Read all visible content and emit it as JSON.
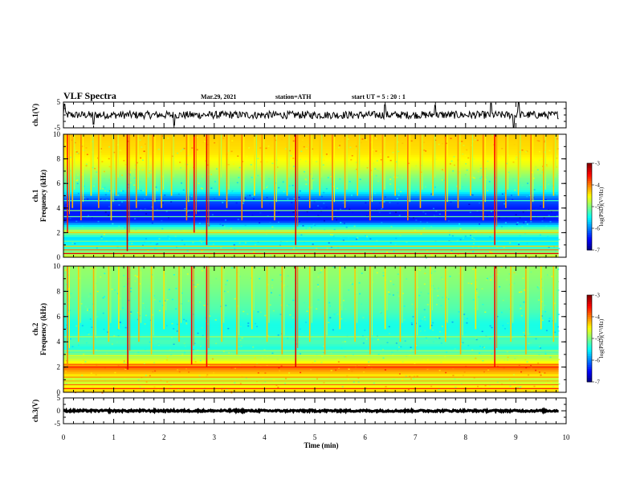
{
  "header": {
    "title": "VLF Spectra",
    "date": "Mar.29, 2021",
    "station": "station=ATH",
    "start_ut": "start  UT =  5 : 20 : 1"
  },
  "chart_data": [
    {
      "id": "ch1-waveform",
      "type": "line",
      "ylabel": "ch.1(V)",
      "ylim": [
        -5,
        5
      ],
      "yticks": [
        5,
        -5
      ],
      "xlim": [
        0,
        10
      ],
      "data_span_min": 9.85,
      "baseline_v": 0,
      "noise_amplitude_v": 1.5,
      "spikes": [
        {
          "t": 0.02,
          "v": 4.2
        },
        {
          "t": 0.6,
          "v": -3.6
        },
        {
          "t": 2.2,
          "v": -4.0
        },
        {
          "t": 6.4,
          "v": 4.0
        },
        {
          "t": 7.4,
          "v": 3.8
        },
        {
          "t": 8.5,
          "v": 4.6
        },
        {
          "t": 8.95,
          "v": -4.8
        },
        {
          "t": 9.05,
          "v": 4.8
        }
      ]
    },
    {
      "id": "ch1-spectrogram",
      "type": "heatmap",
      "ylabel_top": "ch.1",
      "ylabel": "Frequency  (kHz)",
      "ylim": [
        0,
        10
      ],
      "yticks": [
        0,
        2,
        4,
        6,
        8,
        10
      ],
      "xlim": [
        0,
        10
      ],
      "data_span_min": 9.85,
      "colorbar": {
        "label": "log(PSD)(V²/Hz)",
        "range": [
          -7,
          -3
        ],
        "ticks": [
          -3,
          -4,
          -5,
          -6,
          -7
        ]
      },
      "profile": [
        {
          "f": 0,
          "v": -4.6
        },
        {
          "f": 0.5,
          "v": -5.0
        },
        {
          "f": 1.0,
          "v": -5.5
        },
        {
          "f": 1.6,
          "v": -5.6
        },
        {
          "f": 2.0,
          "v": -4.9
        },
        {
          "f": 2.4,
          "v": -5.2
        },
        {
          "f": 3.0,
          "v": -6.4
        },
        {
          "f": 4.0,
          "v": -6.4
        },
        {
          "f": 4.8,
          "v": -6.1
        },
        {
          "f": 5.5,
          "v": -5.3
        },
        {
          "f": 6.5,
          "v": -5.0
        },
        {
          "f": 7.5,
          "v": -4.6
        },
        {
          "f": 8.5,
          "v": -4.4
        },
        {
          "f": 10,
          "v": -4.3
        }
      ],
      "hlines": [
        {
          "f": 0.3,
          "v": -3.4
        },
        {
          "f": 0.6,
          "v": -3.9
        },
        {
          "f": 0.9,
          "v": -4.3
        },
        {
          "f": 1.3,
          "v": -5.0
        },
        {
          "f": 2.0,
          "v": -4.3
        },
        {
          "f": 2.15,
          "v": -4.6
        },
        {
          "f": 3.3,
          "v": -5.1
        },
        {
          "f": 3.8,
          "v": -5.0
        },
        {
          "f": 4.6,
          "v": -5.3
        }
      ],
      "sferics": [
        {
          "t": 0.08,
          "f_min": 2,
          "v": -3.6
        },
        {
          "t": 0.18,
          "f_min": 4,
          "v": -4.2
        },
        {
          "t": 0.35,
          "f_min": 3,
          "v": -4.0
        },
        {
          "t": 0.55,
          "f_min": 5,
          "v": -4.4
        },
        {
          "t": 0.7,
          "f_min": 4,
          "v": -4.1
        },
        {
          "t": 0.95,
          "f_min": 3,
          "v": -4.3
        },
        {
          "t": 1.05,
          "f_min": 5,
          "v": -4.2
        },
        {
          "t": 1.27,
          "f_min": 0.5,
          "v": -3.3
        },
        {
          "t": 1.45,
          "f_min": 4,
          "v": -4.1
        },
        {
          "t": 1.65,
          "f_min": 5,
          "v": -4.3
        },
        {
          "t": 1.78,
          "f_min": 3,
          "v": -4.0
        },
        {
          "t": 1.95,
          "f_min": 4,
          "v": -4.2
        },
        {
          "t": 2.15,
          "f_min": 5,
          "v": -4.3
        },
        {
          "t": 2.45,
          "f_min": 3,
          "v": -4.0
        },
        {
          "t": 2.6,
          "f_min": 2,
          "v": -3.5
        },
        {
          "t": 2.85,
          "f_min": 1,
          "v": -3.4
        },
        {
          "t": 3.1,
          "f_min": 5,
          "v": -4.3
        },
        {
          "t": 3.25,
          "f_min": 4,
          "v": -4.1
        },
        {
          "t": 3.55,
          "f_min": 3,
          "v": -4.0
        },
        {
          "t": 3.8,
          "f_min": 5,
          "v": -4.4
        },
        {
          "t": 3.95,
          "f_min": 4,
          "v": -4.1
        },
        {
          "t": 4.2,
          "f_min": 3,
          "v": -4.2
        },
        {
          "t": 4.45,
          "f_min": 5,
          "v": -4.3
        },
        {
          "t": 4.62,
          "f_min": 1,
          "v": -3.4
        },
        {
          "t": 4.9,
          "f_min": 4,
          "v": -4.1
        },
        {
          "t": 5.1,
          "f_min": 5,
          "v": -4.3
        },
        {
          "t": 5.35,
          "f_min": 3,
          "v": -4.0
        },
        {
          "t": 5.6,
          "f_min": 4,
          "v": -4.2
        },
        {
          "t": 5.85,
          "f_min": 5,
          "v": -4.3
        },
        {
          "t": 6.1,
          "f_min": 3,
          "v": -4.0
        },
        {
          "t": 6.35,
          "f_min": 4,
          "v": -4.1
        },
        {
          "t": 6.6,
          "f_min": 5,
          "v": -4.3
        },
        {
          "t": 6.85,
          "f_min": 3,
          "v": -4.0
        },
        {
          "t": 7.1,
          "f_min": 4,
          "v": -4.2
        },
        {
          "t": 7.35,
          "f_min": 5,
          "v": -4.3
        },
        {
          "t": 7.6,
          "f_min": 3,
          "v": -4.0
        },
        {
          "t": 7.85,
          "f_min": 4,
          "v": -4.1
        },
        {
          "t": 8.1,
          "f_min": 5,
          "v": -4.3
        },
        {
          "t": 8.35,
          "f_min": 3,
          "v": -4.0
        },
        {
          "t": 8.58,
          "f_min": 1,
          "v": -3.5
        },
        {
          "t": 8.8,
          "f_min": 4,
          "v": -4.1
        },
        {
          "t": 9.05,
          "f_min": 5,
          "v": -4.3
        },
        {
          "t": 9.3,
          "f_min": 3,
          "v": -4.0
        },
        {
          "t": 9.55,
          "f_min": 4,
          "v": -4.2
        },
        {
          "t": 9.75,
          "f_min": 5,
          "v": -4.3
        }
      ]
    },
    {
      "id": "ch2-spectrogram",
      "type": "heatmap",
      "ylabel_top": "ch.2",
      "ylabel": "Frequency  (kHz)",
      "ylim": [
        0,
        10
      ],
      "yticks": [
        0,
        2,
        4,
        6,
        8,
        10
      ],
      "xlim": [
        0,
        10
      ],
      "data_span_min": 9.85,
      "colorbar": {
        "label": "log(PSD)(V²/Hz)",
        "range": [
          -7,
          -3
        ],
        "ticks": [
          -3,
          -4,
          -5,
          -6,
          -7
        ]
      },
      "profile": [
        {
          "f": 0,
          "v": -4.3
        },
        {
          "f": 0.5,
          "v": -4.5
        },
        {
          "f": 1.0,
          "v": -4.8
        },
        {
          "f": 1.5,
          "v": -4.3
        },
        {
          "f": 2.0,
          "v": -3.9
        },
        {
          "f": 2.4,
          "v": -4.5
        },
        {
          "f": 3.0,
          "v": -5.0
        },
        {
          "f": 3.5,
          "v": -5.4
        },
        {
          "f": 4.0,
          "v": -5.2
        },
        {
          "f": 4.8,
          "v": -5.4
        },
        {
          "f": 5.5,
          "v": -5.4
        },
        {
          "f": 6.5,
          "v": -5.2
        },
        {
          "f": 7.5,
          "v": -5.1
        },
        {
          "f": 8.5,
          "v": -5.0
        },
        {
          "f": 10,
          "v": -4.9
        }
      ],
      "hlines": [
        {
          "f": 0.3,
          "v": -3.5
        },
        {
          "f": 0.6,
          "v": -3.9
        },
        {
          "f": 0.9,
          "v": -4.2
        },
        {
          "f": 1.2,
          "v": -4.0
        },
        {
          "f": 2.0,
          "v": -3.6
        },
        {
          "f": 2.2,
          "v": -3.9
        },
        {
          "f": 2.9,
          "v": -4.6
        },
        {
          "f": 3.3,
          "v": -4.8
        },
        {
          "f": 4.4,
          "v": -4.8
        }
      ],
      "sferics": [
        {
          "t": 0.08,
          "f_min": 2,
          "v": -4.0
        },
        {
          "t": 0.3,
          "f_min": 4,
          "v": -4.3
        },
        {
          "t": 0.6,
          "f_min": 3,
          "v": -4.2
        },
        {
          "t": 0.9,
          "f_min": 4,
          "v": -4.3
        },
        {
          "t": 1.1,
          "f_min": 5,
          "v": -4.4
        },
        {
          "t": 1.28,
          "f_min": 1.8,
          "v": -3.4
        },
        {
          "t": 1.5,
          "f_min": 4,
          "v": -4.2
        },
        {
          "t": 1.75,
          "f_min": 3,
          "v": -4.3
        },
        {
          "t": 2.0,
          "f_min": 5,
          "v": -4.4
        },
        {
          "t": 2.3,
          "f_min": 4,
          "v": -4.2
        },
        {
          "t": 2.55,
          "f_min": 2.2,
          "v": -3.5
        },
        {
          "t": 2.85,
          "f_min": 2,
          "v": -3.5
        },
        {
          "t": 3.15,
          "f_min": 4,
          "v": -4.3
        },
        {
          "t": 3.45,
          "f_min": 3,
          "v": -4.2
        },
        {
          "t": 3.75,
          "f_min": 5,
          "v": -4.4
        },
        {
          "t": 4.05,
          "f_min": 4,
          "v": -4.3
        },
        {
          "t": 4.35,
          "f_min": 3,
          "v": -4.2
        },
        {
          "t": 4.62,
          "f_min": 2,
          "v": -3.4
        },
        {
          "t": 4.9,
          "f_min": 4,
          "v": -4.3
        },
        {
          "t": 5.2,
          "f_min": 3,
          "v": -4.2
        },
        {
          "t": 5.5,
          "f_min": 5,
          "v": -4.4
        },
        {
          "t": 5.8,
          "f_min": 4,
          "v": -4.3
        },
        {
          "t": 6.1,
          "f_min": 3,
          "v": -4.2
        },
        {
          "t": 6.4,
          "f_min": 5,
          "v": -4.4
        },
        {
          "t": 6.7,
          "f_min": 4,
          "v": -4.3
        },
        {
          "t": 7.0,
          "f_min": 3,
          "v": -4.2
        },
        {
          "t": 7.3,
          "f_min": 5,
          "v": -4.4
        },
        {
          "t": 7.6,
          "f_min": 4,
          "v": -4.3
        },
        {
          "t": 7.9,
          "f_min": 3,
          "v": -4.2
        },
        {
          "t": 8.2,
          "f_min": 5,
          "v": -4.4
        },
        {
          "t": 8.58,
          "f_min": 2,
          "v": -3.5
        },
        {
          "t": 8.9,
          "f_min": 4,
          "v": -4.3
        },
        {
          "t": 9.2,
          "f_min": 3,
          "v": -4.2
        },
        {
          "t": 9.5,
          "f_min": 5,
          "v": -4.4
        },
        {
          "t": 9.75,
          "f_min": 4,
          "v": -4.3
        }
      ]
    },
    {
      "id": "ch3-waveform",
      "type": "line",
      "ylabel": "ch.3(V)",
      "ylim": [
        -5,
        5
      ],
      "yticks": [
        5,
        0,
        -5
      ],
      "xlim": [
        0,
        10
      ],
      "data_span_min": 9.85,
      "baseline_v": 0,
      "noise_amplitude_v": 0.35
    }
  ],
  "x_axis": {
    "label": "Time  (min)",
    "ticks": [
      0,
      1,
      2,
      3,
      4,
      5,
      6,
      7,
      8,
      9,
      10
    ]
  },
  "colors": {
    "colormap": [
      "#00007f",
      "#0000ff",
      "#007fff",
      "#00ffff",
      "#7fff7f",
      "#ffff00",
      "#ff7f00",
      "#ff0000",
      "#7f0000"
    ],
    "trace": "#000000",
    "background": "#ffffff"
  }
}
